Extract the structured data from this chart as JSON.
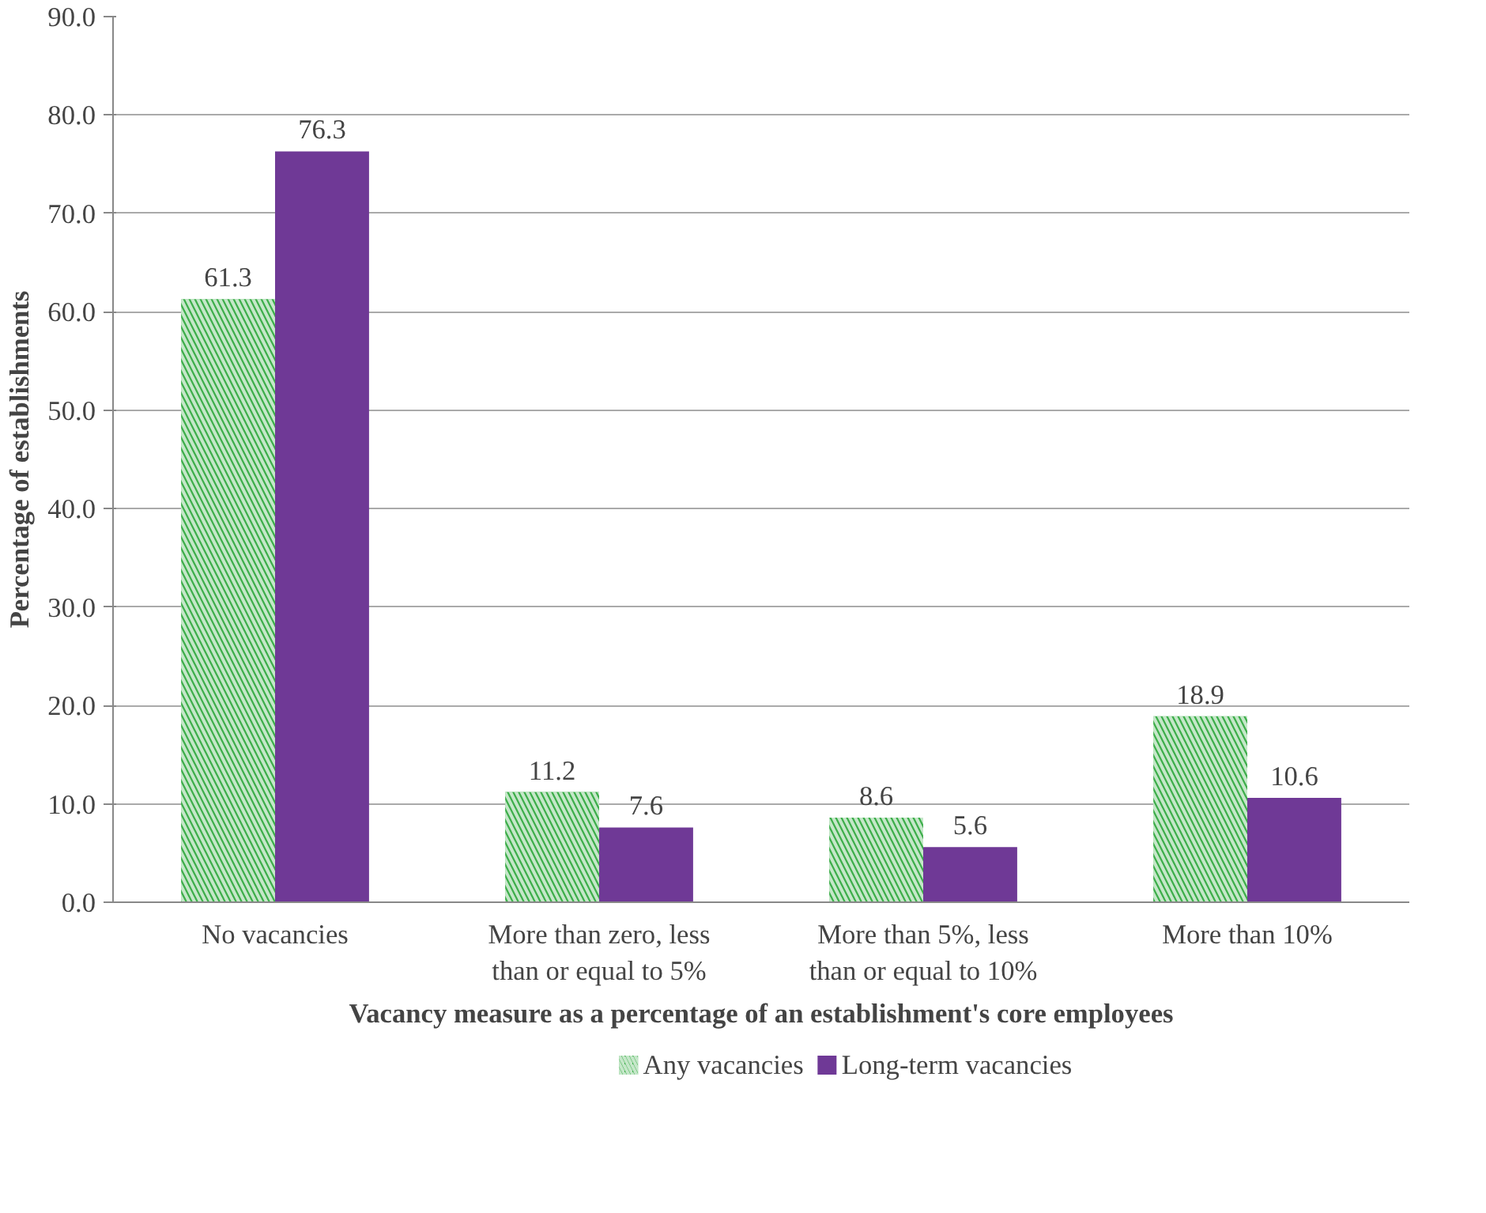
{
  "chart_data": {
    "type": "bar",
    "xlabel": "Vacancy measure as a percentage of an establishment's core employees",
    "ylabel": "Percentage of establishments",
    "categories": [
      "No vacancies",
      "More than zero, less than or equal to 5%",
      "More than 5%, less than or equal to 10%",
      "More than 10%"
    ],
    "series": [
      {
        "name": "Any vacancies",
        "color": "#3dae4a",
        "values": [
          61.3,
          11.2,
          8.6,
          18.9
        ]
      },
      {
        "name": "Long-term vacancies",
        "color": "#6f3996",
        "values": [
          76.3,
          7.6,
          5.6,
          10.6
        ]
      }
    ],
    "ylim": [
      0,
      90
    ],
    "yticks": [
      {
        "value": 0,
        "label": "0.0"
      },
      {
        "value": 10,
        "label": "10.0"
      },
      {
        "value": 20,
        "label": "20.0"
      },
      {
        "value": 30,
        "label": "30.0"
      },
      {
        "value": 40,
        "label": "40.0"
      },
      {
        "value": 50,
        "label": "50.0"
      },
      {
        "value": 60,
        "label": "60.0"
      },
      {
        "value": 70,
        "label": "70.0"
      },
      {
        "value": 80,
        "label": "80.0"
      },
      {
        "value": 90,
        "label": "90.0"
      }
    ],
    "grid": "y",
    "legend": "bottom",
    "data_labels": true
  }
}
